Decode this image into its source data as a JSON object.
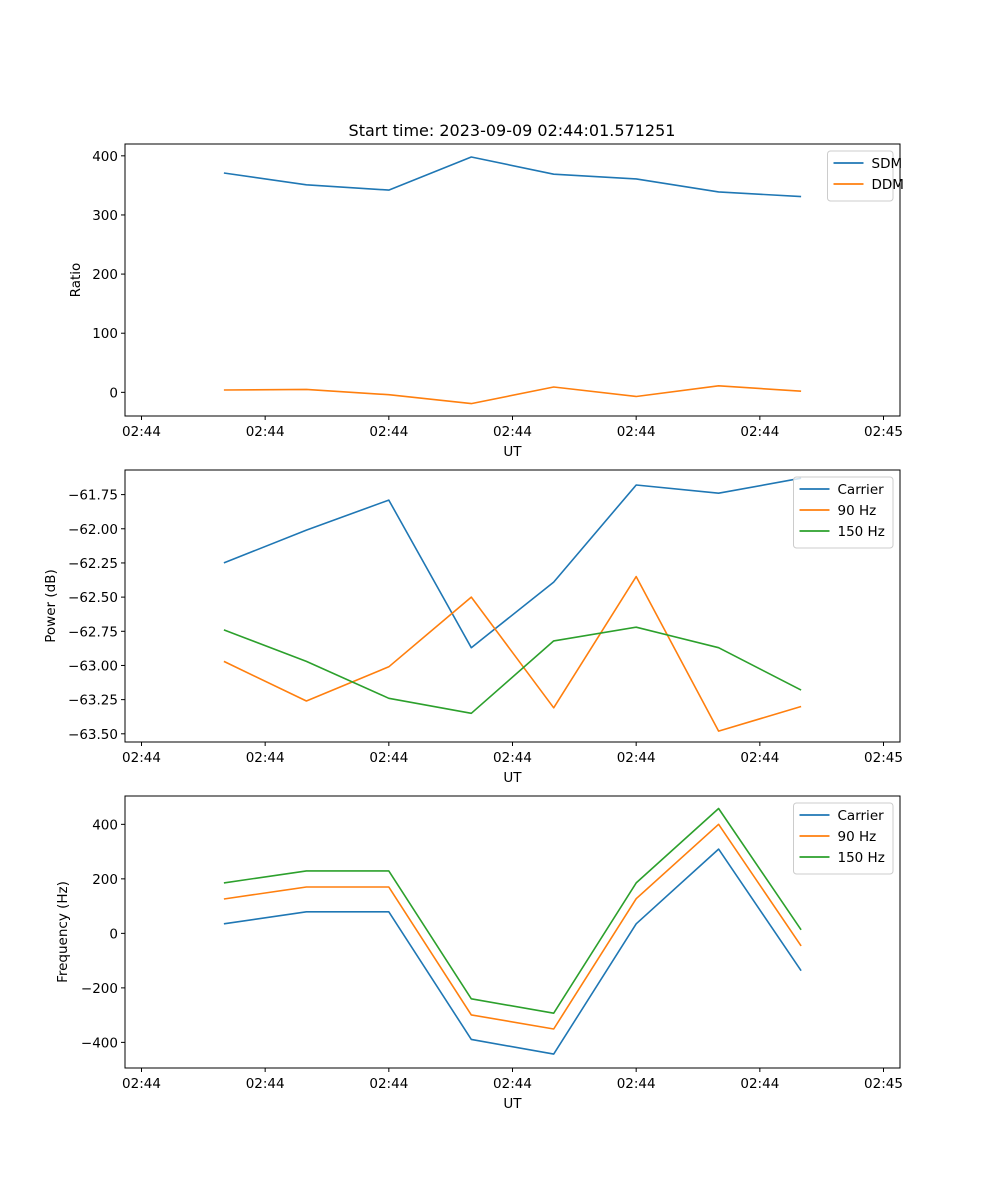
{
  "figure": {
    "title": "Start time: 2023-09-09 02:44:01.571251"
  },
  "chart_data": [
    {
      "type": "line",
      "title": "Start time: 2023-09-09 02:44:01.571251",
      "xlabel": "UT",
      "ylabel": "Ratio",
      "xticks": [
        "02:44",
        "02:44",
        "02:44",
        "02:44",
        "02:44",
        "02:44",
        "02:45"
      ],
      "yticks": [
        0,
        100,
        200,
        300,
        400
      ],
      "ylim": [
        -40,
        420
      ],
      "x": [
        1,
        2,
        3,
        4,
        5,
        6,
        7,
        8
      ],
      "xlim": [
        -0.2,
        9.2
      ],
      "legend": "top-right",
      "series": [
        {
          "name": "SDM",
          "color": "#1f77b4",
          "values": [
            371,
            351,
            342,
            398,
            369,
            361,
            339,
            331
          ]
        },
        {
          "name": "DDM",
          "color": "#ff7f0e",
          "values": [
            4,
            5,
            -4,
            -19,
            9,
            -7,
            11,
            2
          ]
        }
      ]
    },
    {
      "type": "line",
      "title": "",
      "xlabel": "UT",
      "ylabel": "Power (dB)",
      "xticks": [
        "02:44",
        "02:44",
        "02:44",
        "02:44",
        "02:44",
        "02:44",
        "02:45"
      ],
      "yticks": [
        -63.5,
        -63.25,
        -63.0,
        -62.75,
        -62.5,
        -62.25,
        -62.0,
        -61.75
      ],
      "ytick_labels": [
        "−63.50",
        "−63.25",
        "−63.00",
        "−62.75",
        "−62.50",
        "−62.25",
        "−62.00",
        "−61.75"
      ],
      "ylim": [
        -63.56,
        -61.57
      ],
      "x": [
        1,
        2,
        3,
        4,
        5,
        6,
        7,
        8
      ],
      "xlim": [
        -0.2,
        9.2
      ],
      "legend": "top-right",
      "series": [
        {
          "name": "Carrier",
          "color": "#1f77b4",
          "values": [
            -62.25,
            -62.01,
            -61.79,
            -62.87,
            -62.39,
            -61.68,
            -61.74,
            -61.63
          ]
        },
        {
          "name": "90 Hz",
          "color": "#ff7f0e",
          "values": [
            -62.97,
            -63.26,
            -63.01,
            -62.5,
            -63.31,
            -62.35,
            -63.48,
            -63.3
          ]
        },
        {
          "name": "150 Hz",
          "color": "#2ca02c",
          "values": [
            -62.74,
            -62.97,
            -63.24,
            -63.35,
            -62.82,
            -62.72,
            -62.87,
            -63.18
          ]
        }
      ]
    },
    {
      "type": "line",
      "title": "",
      "xlabel": "UT",
      "ylabel": "Frequency (Hz)",
      "xticks": [
        "02:44",
        "02:44",
        "02:44",
        "02:44",
        "02:44",
        "02:44",
        "02:45"
      ],
      "yticks": [
        -400,
        -200,
        0,
        200,
        400
      ],
      "ytick_labels": [
        "−400",
        "−200",
        "0",
        "200",
        "400"
      ],
      "ylim": [
        -494,
        504
      ],
      "x": [
        1,
        2,
        3,
        4,
        5,
        6,
        7,
        8
      ],
      "xlim": [
        -0.2,
        9.2
      ],
      "legend": "top-right",
      "series": [
        {
          "name": "Carrier",
          "color": "#1f77b4",
          "values": [
            35,
            79,
            79,
            -389,
            -443,
            35,
            309,
            -137
          ]
        },
        {
          "name": "90 Hz",
          "color": "#ff7f0e",
          "values": [
            126,
            170,
            170,
            -299,
            -351,
            127,
            400,
            -46
          ]
        },
        {
          "name": "150 Hz",
          "color": "#2ca02c",
          "values": [
            185,
            229,
            229,
            -240,
            -293,
            185,
            458,
            13
          ]
        }
      ]
    }
  ]
}
